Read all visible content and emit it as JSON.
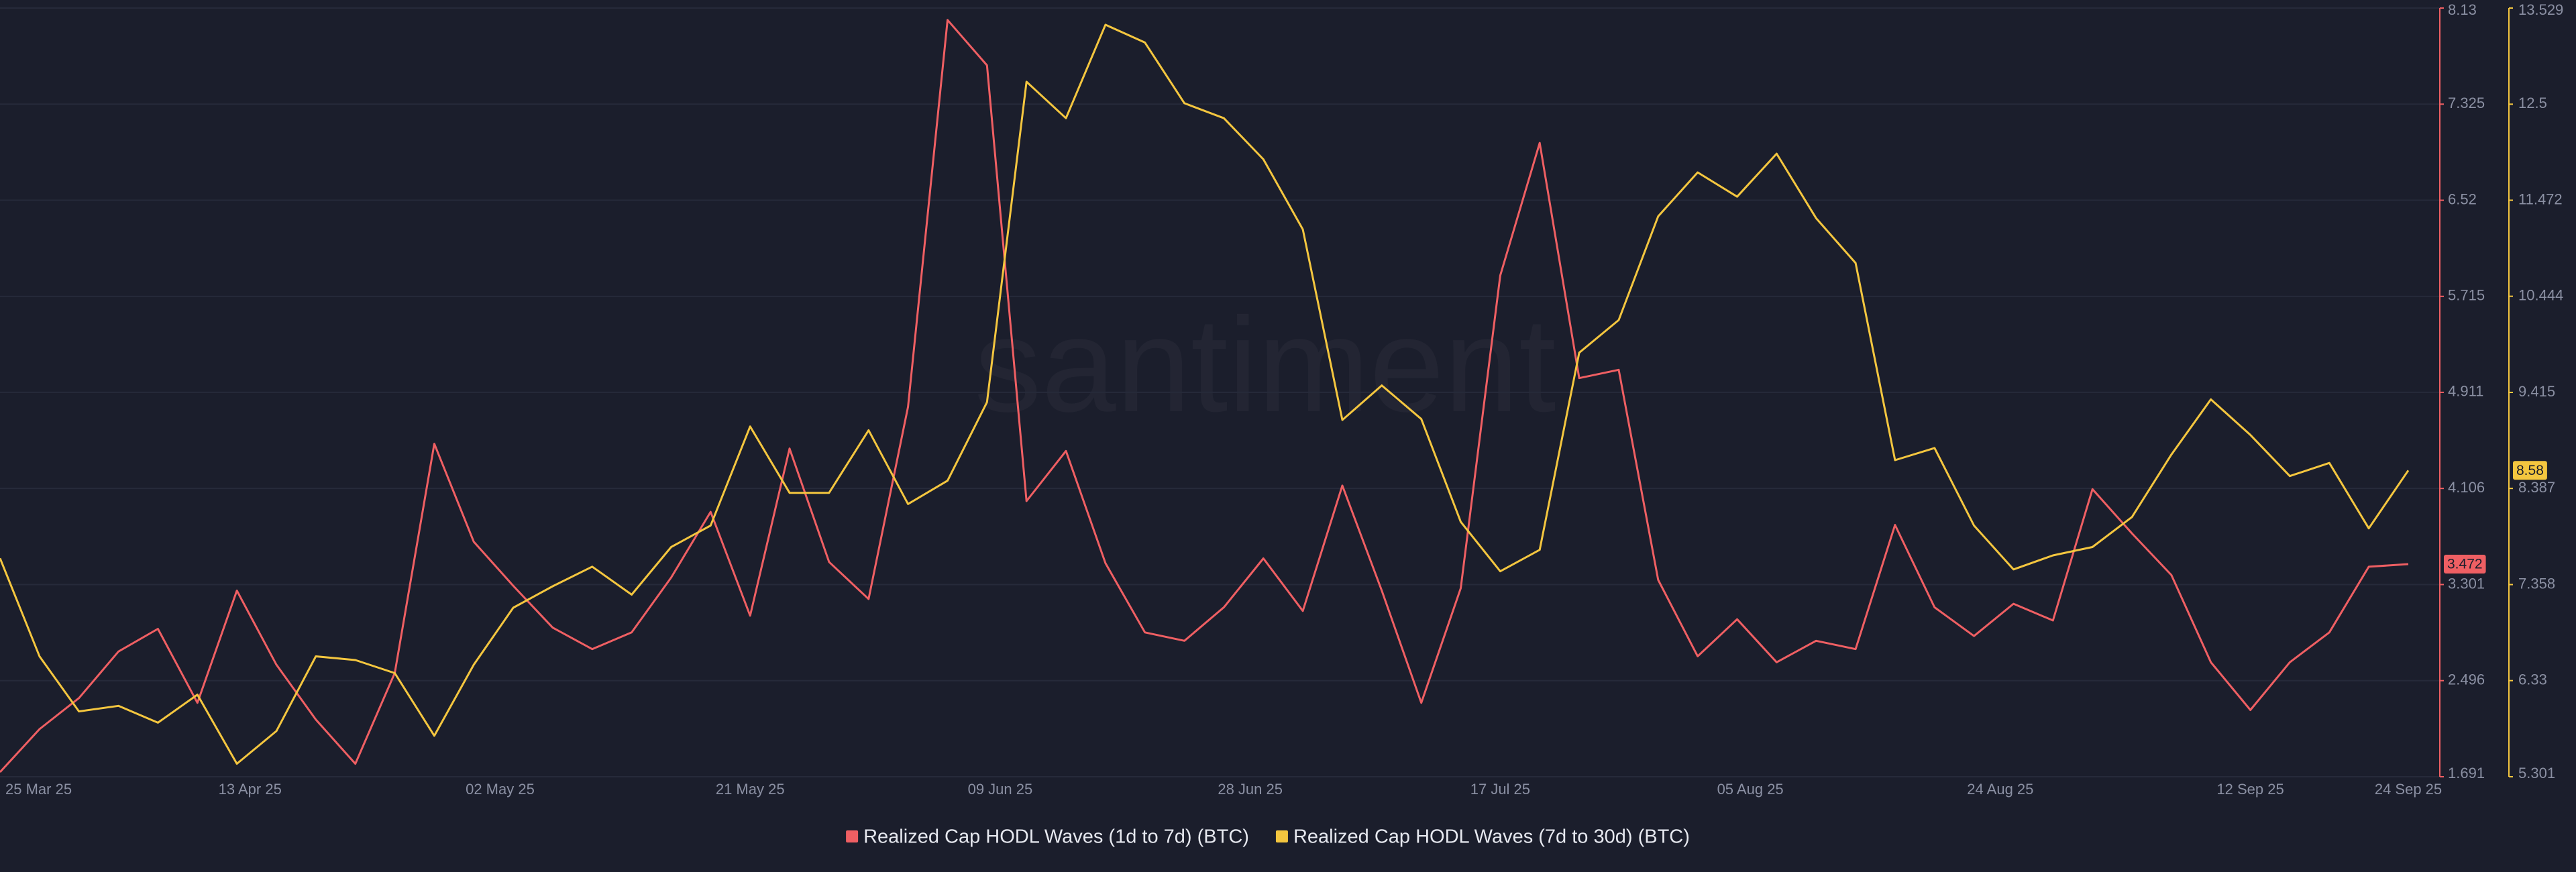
{
  "chart_data": {
    "type": "line",
    "watermark": "santiment",
    "x": [
      "25 Mar 25",
      "28 Mar 25",
      "31 Mar 25",
      "03 Apr 25",
      "06 Apr 25",
      "09 Apr 25",
      "12 Apr 25",
      "15 Apr 25",
      "18 Apr 25",
      "21 Apr 25",
      "24 Apr 25",
      "27 Apr 25",
      "30 Apr 25",
      "03 May 25",
      "06 May 25",
      "09 May 25",
      "12 May 25",
      "15 May 25",
      "18 May 25",
      "21 May 25",
      "24 May 25",
      "27 May 25",
      "30 May 25",
      "02 Jun 25",
      "05 Jun 25",
      "08 Jun 25",
      "11 Jun 25",
      "14 Jun 25",
      "17 Jun 25",
      "20 Jun 25",
      "23 Jun 25",
      "26 Jun 25",
      "29 Jun 25",
      "02 Jul 25",
      "05 Jul 25",
      "08 Jul 25",
      "11 Jul 25",
      "14 Jul 25",
      "17 Jul 25",
      "20 Jul 25",
      "23 Jul 25",
      "26 Jul 25",
      "29 Jul 25",
      "01 Aug 25",
      "04 Aug 25",
      "07 Aug 25",
      "10 Aug 25",
      "13 Aug 25",
      "16 Aug 25",
      "19 Aug 25",
      "22 Aug 25",
      "25 Aug 25",
      "28 Aug 25",
      "31 Aug 25",
      "03 Sep 25",
      "06 Sep 25",
      "09 Sep 25",
      "12 Sep 25",
      "15 Sep 25",
      "18 Sep 25",
      "21 Sep 25",
      "24 Sep 25"
    ],
    "series": [
      {
        "name": "Realized Cap HODL Waves (1d to 7d) (BTC)",
        "color": "#ef5f63",
        "axis": "y",
        "values": [
          1.73,
          2.09,
          2.35,
          2.74,
          2.93,
          2.31,
          3.25,
          2.63,
          2.17,
          1.8,
          2.56,
          4.48,
          3.66,
          3.29,
          2.94,
          2.76,
          2.9,
          3.36,
          3.91,
          3.04,
          4.44,
          3.49,
          3.18,
          4.79,
          8.03,
          7.65,
          4.0,
          4.42,
          3.48,
          2.9,
          2.83,
          3.11,
          3.52,
          3.08,
          4.13,
          3.25,
          2.31,
          3.27,
          5.89,
          7.0,
          5.03,
          5.1,
          3.34,
          2.7,
          3.01,
          2.65,
          2.83,
          2.76,
          3.8,
          3.11,
          2.87,
          3.14,
          3.0,
          4.1,
          3.73,
          3.38,
          2.65,
          2.25,
          2.65,
          2.9,
          3.45,
          3.472
        ]
      },
      {
        "name": "Realized Cap HODL Waves (7d to 30d) (BTC)",
        "color": "#f4c63f",
        "axis": "y2",
        "values": [
          7.64,
          6.59,
          6.0,
          6.06,
          5.88,
          6.18,
          5.44,
          5.79,
          6.59,
          6.55,
          6.41,
          5.74,
          6.5,
          7.11,
          7.34,
          7.55,
          7.25,
          7.76,
          7.99,
          9.05,
          8.34,
          8.34,
          9.01,
          8.22,
          8.47,
          9.31,
          12.74,
          12.35,
          13.35,
          13.16,
          12.51,
          12.35,
          11.91,
          11.16,
          9.12,
          9.49,
          9.13,
          8.03,
          7.5,
          7.73,
          9.84,
          10.19,
          11.3,
          11.77,
          11.51,
          11.97,
          11.28,
          10.8,
          8.69,
          8.82,
          7.99,
          7.52,
          7.67,
          7.76,
          8.08,
          8.75,
          9.34,
          8.96,
          8.52,
          8.66,
          7.96,
          8.58
        ]
      }
    ],
    "xlim": [
      "25 Mar 25",
      "24 Sep 25"
    ],
    "xticks": [
      "25 Mar 25",
      "13 Apr 25",
      "02 May 25",
      "21 May 25",
      "09 Jun 25",
      "28 Jun 25",
      "17 Jul 25",
      "05 Aug 25",
      "24 Aug 25",
      "12 Sep 25",
      "24 Sep 25"
    ],
    "ylim": [
      1.691,
      8.13
    ],
    "yticks": [
      1.691,
      2.496,
      3.301,
      4.106,
      4.911,
      5.715,
      6.52,
      7.325,
      8.13
    ],
    "y2lim": [
      5.301,
      13.529
    ],
    "y2ticks": [
      5.301,
      6.33,
      7.358,
      8.387,
      9.415,
      10.444,
      11.472,
      12.5,
      13.529
    ],
    "grid": true
  }
}
